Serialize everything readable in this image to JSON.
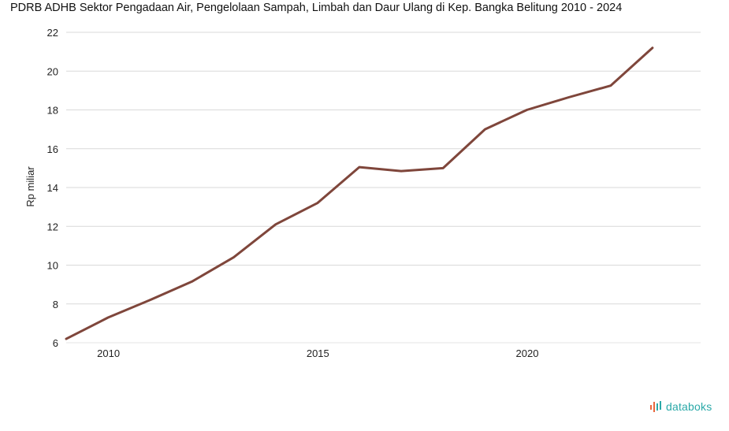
{
  "chart_data": {
    "type": "line",
    "title": "PDRB ADHB Sektor Pengadaan Air, Pengelolaan Sampah, Limbah dan Daur Ulang di Kep. Bangka Belitung 2010 - 2024",
    "xlabel": "",
    "ylabel": "Rp miliar",
    "ylim": [
      6,
      22
    ],
    "yticks": [
      6,
      8,
      10,
      12,
      14,
      16,
      18,
      20,
      22
    ],
    "xlim": [
      2009,
      2024.15
    ],
    "xticks": [
      2010,
      2015,
      2020
    ],
    "grid": true,
    "series": [
      {
        "name": "PDRB ADHB",
        "color": "#7f463b",
        "x": [
          2009,
          2010,
          2011,
          2012,
          2013,
          2014,
          2015,
          2016,
          2017,
          2018,
          2019,
          2020,
          2021,
          2022,
          2023
        ],
        "values": [
          6.2,
          7.3,
          8.2,
          9.15,
          10.4,
          12.1,
          13.2,
          15.05,
          14.85,
          15.0,
          17.0,
          18.0,
          18.65,
          19.25,
          21.2
        ]
      }
    ]
  },
  "brand": {
    "name": "databoks"
  }
}
